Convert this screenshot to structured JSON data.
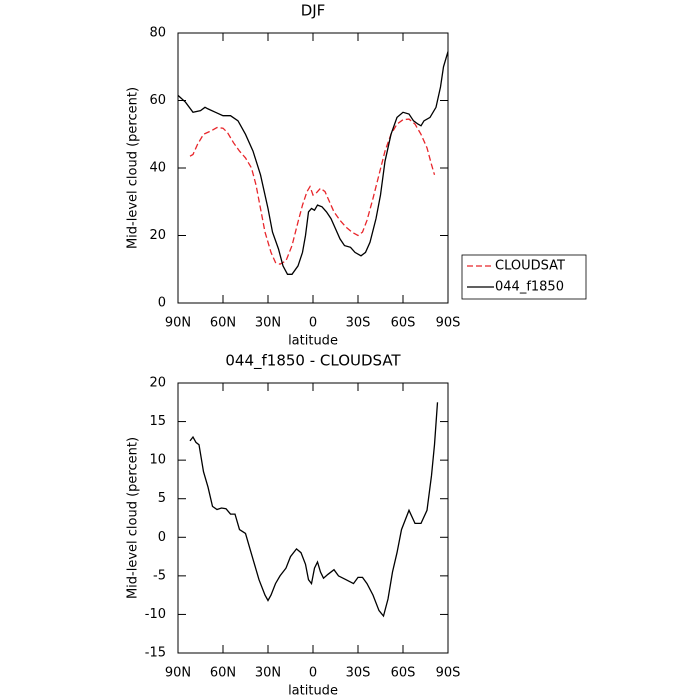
{
  "chart_data": [
    {
      "type": "line",
      "title": "DJF",
      "xlabel": "latitude",
      "ylabel": "Mid-level cloud (percent)",
      "xlim": [
        90,
        -90
      ],
      "xticks": [
        {
          "value": 90,
          "label": "90N"
        },
        {
          "value": 60,
          "label": "60N"
        },
        {
          "value": 30,
          "label": "30N"
        },
        0,
        {
          "value": -30,
          "label": "30S"
        },
        {
          "value": -60,
          "label": "60S"
        },
        {
          "value": -90,
          "label": "90S"
        }
      ],
      "ylim": [
        0,
        80
      ],
      "yticks": [
        0,
        20,
        40,
        60,
        80
      ],
      "legend": "outside-right",
      "series": [
        {
          "name": "CLOUDSAT",
          "color": "#e8262b",
          "linestyle": "dashed",
          "x": [
            82,
            80,
            77,
            73,
            68,
            64,
            60,
            57,
            53,
            49,
            45,
            41,
            38,
            35,
            32,
            28,
            25,
            22,
            18,
            14,
            10,
            7,
            4,
            2,
            0,
            -2,
            -5,
            -8,
            -11,
            -14,
            -18,
            -22,
            -26,
            -30,
            -33,
            -36,
            -40,
            -44,
            -48,
            -52,
            -56,
            -60,
            -64,
            -68,
            -72,
            -76,
            -79,
            -81
          ],
          "values": [
            43.5,
            44,
            47,
            50,
            51,
            52,
            51.8,
            50.5,
            47.5,
            45,
            43,
            40,
            35,
            28,
            21,
            15,
            12,
            11.5,
            12.5,
            17,
            24,
            29,
            33,
            34.5,
            32,
            32.5,
            34,
            33,
            30,
            27,
            24.5,
            22.5,
            21,
            20,
            21,
            24.5,
            31,
            38,
            45,
            50,
            53,
            54.3,
            54.5,
            53,
            50,
            46,
            41,
            38
          ]
        },
        {
          "name": "044_f1850",
          "color": "#000000",
          "linestyle": "solid",
          "x": [
            90,
            85,
            80,
            75,
            72,
            70,
            65,
            60,
            55,
            50,
            45,
            40,
            35,
            30,
            27,
            23,
            20,
            17,
            14,
            10,
            7,
            5,
            3,
            1,
            -1,
            -3,
            -6,
            -9,
            -12,
            -15,
            -18,
            -21,
            -25,
            -28,
            -32,
            -35,
            -38,
            -42,
            -45,
            -48,
            -52,
            -56,
            -60,
            -64,
            -67,
            -70,
            -72,
            -74,
            -78,
            -82,
            -85,
            -87,
            -90
          ],
          "values": [
            61.5,
            59.5,
            56.5,
            57,
            58,
            57.5,
            56.5,
            55.5,
            55.5,
            54,
            50,
            45,
            38,
            28,
            21,
            16,
            11,
            8.5,
            8.5,
            11,
            15,
            20,
            27,
            28,
            27.5,
            29,
            28.5,
            27,
            25,
            22,
            19,
            17,
            16.5,
            15,
            14,
            15,
            18,
            25,
            32,
            42,
            50,
            55,
            56.5,
            56,
            54,
            53,
            52.5,
            54,
            55,
            58,
            64,
            70,
            74.5
          ]
        }
      ]
    },
    {
      "type": "line",
      "title": "044_f1850 - CLOUDSAT",
      "xlabel": "latitude",
      "ylabel": "Mid-level cloud (percent)",
      "xlim": [
        90,
        -90
      ],
      "xticks": [
        {
          "value": 90,
          "label": "90N"
        },
        {
          "value": 60,
          "label": "60N"
        },
        {
          "value": 30,
          "label": "30N"
        },
        0,
        {
          "value": -30,
          "label": "30S"
        },
        {
          "value": -60,
          "label": "60S"
        },
        {
          "value": -90,
          "label": "90S"
        }
      ],
      "ylim": [
        -15,
        20
      ],
      "yticks": [
        -15,
        -10,
        -5,
        0,
        5,
        10,
        15,
        20
      ],
      "series": [
        {
          "color": "#000000",
          "linestyle": "solid",
          "x": [
            82,
            80,
            78,
            76,
            73,
            70,
            67,
            64,
            61,
            58,
            55,
            52,
            49,
            45,
            42,
            39,
            36,
            32,
            30,
            28,
            25,
            22,
            18,
            15,
            11,
            8,
            5,
            3,
            1,
            -1,
            -3,
            -5,
            -7,
            -10,
            -14,
            -17,
            -22,
            -27,
            -30,
            -33,
            -36,
            -40,
            -44,
            -47,
            -50,
            -53,
            -56,
            -59,
            -62,
            -64,
            -68,
            -72,
            -76,
            -79,
            -81,
            -83
          ],
          "values": [
            12.5,
            13,
            12.3,
            12,
            8.5,
            6.5,
            4,
            3.6,
            3.8,
            3.7,
            3,
            3,
            1,
            0.5,
            -1.5,
            -3.5,
            -5.5,
            -7.5,
            -8.2,
            -7.5,
            -6,
            -5,
            -4,
            -2.5,
            -1.5,
            -2,
            -3.5,
            -5.5,
            -6,
            -4,
            -3.2,
            -4.5,
            -5.3,
            -4.8,
            -4.2,
            -5,
            -5.5,
            -6,
            -5.2,
            -5.2,
            -6,
            -7.5,
            -9.5,
            -10.2,
            -8,
            -4.5,
            -2,
            1,
            2.5,
            3.5,
            1.8,
            1.8,
            3.5,
            8,
            12,
            17.5
          ]
        }
      ]
    }
  ]
}
